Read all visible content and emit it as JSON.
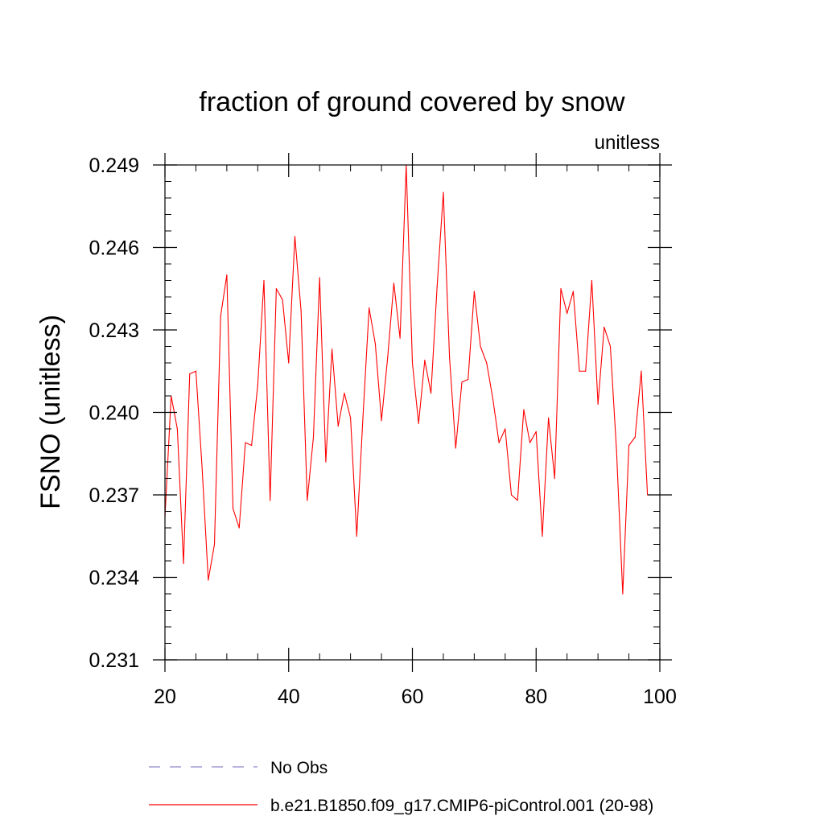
{
  "chart_data": {
    "type": "line",
    "title": "fraction of ground covered by snow",
    "units_label": "unitless",
    "ylabel": "FSNO  (unitless)",
    "xlabel": "",
    "xlim": [
      20,
      100
    ],
    "ylim": [
      0.231,
      0.249
    ],
    "x_ticks": [
      20,
      40,
      60,
      80,
      100
    ],
    "y_ticks": [
      0.231,
      0.234,
      0.237,
      0.24,
      0.243,
      0.246,
      0.249
    ],
    "x_tick_labels": [
      "20",
      "40",
      "60",
      "80",
      "100"
    ],
    "y_tick_labels": [
      "0.231",
      "0.234",
      "0.237",
      "0.240",
      "0.243",
      "0.246",
      "0.249"
    ],
    "grid": false,
    "legend_position": "bottom",
    "series": [
      {
        "name": "No Obs",
        "color": "#8a86c8",
        "style": "dashed",
        "x": [],
        "values": []
      },
      {
        "name": "b.e21.B1850.f09_g17.CMIP6-piControl.001 (20-98)",
        "color": "#ff0000",
        "style": "solid",
        "x": [
          20,
          21,
          22,
          23,
          24,
          25,
          26,
          27,
          28,
          29,
          30,
          31,
          32,
          33,
          34,
          35,
          36,
          37,
          38,
          39,
          40,
          41,
          42,
          43,
          44,
          45,
          46,
          47,
          48,
          49,
          50,
          51,
          52,
          53,
          54,
          55,
          56,
          57,
          58,
          59,
          60,
          61,
          62,
          63,
          64,
          65,
          66,
          67,
          68,
          69,
          70,
          71,
          72,
          73,
          74,
          75,
          76,
          77,
          78,
          79,
          80,
          81,
          82,
          83,
          84,
          85,
          86,
          87,
          88,
          89,
          90,
          91,
          92,
          93,
          94,
          95,
          96,
          97,
          98
        ],
        "values": [
          0.2362,
          0.2406,
          0.2394,
          0.2345,
          0.2414,
          0.2415,
          0.238,
          0.2339,
          0.2352,
          0.2435,
          0.245,
          0.2365,
          0.2358,
          0.2389,
          0.2388,
          0.241,
          0.2448,
          0.2368,
          0.2445,
          0.2441,
          0.2418,
          0.2464,
          0.2437,
          0.2368,
          0.2391,
          0.2449,
          0.2382,
          0.2423,
          0.2395,
          0.2407,
          0.2398,
          0.2355,
          0.2398,
          0.2438,
          0.2425,
          0.2397,
          0.242,
          0.2447,
          0.2427,
          0.249,
          0.2418,
          0.2396,
          0.2419,
          0.2407,
          0.2446,
          0.248,
          0.242,
          0.2387,
          0.2411,
          0.2412,
          0.2444,
          0.2424,
          0.2418,
          0.2405,
          0.2389,
          0.2394,
          0.237,
          0.2368,
          0.2401,
          0.2389,
          0.2393,
          0.2355,
          0.2398,
          0.2376,
          0.2445,
          0.2436,
          0.2444,
          0.2415,
          0.2415,
          0.2448,
          0.2403,
          0.2431,
          0.2424,
          0.2386,
          0.2334,
          0.2388,
          0.2391,
          0.2415,
          0.237
        ]
      }
    ]
  }
}
